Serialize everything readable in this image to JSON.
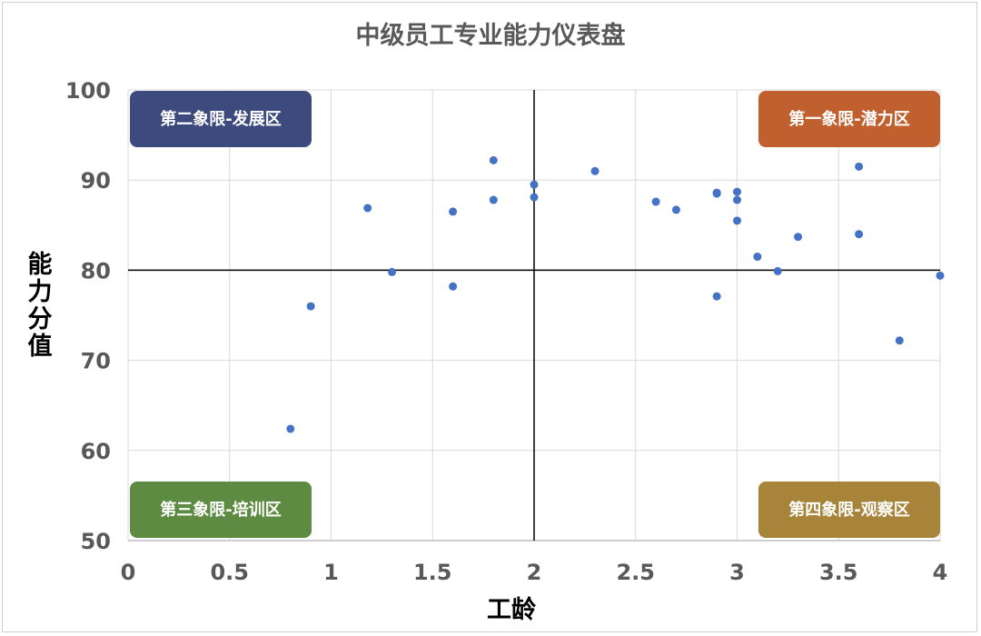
{
  "chart_data": {
    "type": "scatter",
    "title": "中级员工专业能力仪表盘",
    "xlabel": "工龄",
    "ylabel": "能力分值",
    "xlim": [
      0,
      4
    ],
    "ylim": [
      50,
      100
    ],
    "x_ticks": [
      "0",
      "0.5",
      "1",
      "1.5",
      "2",
      "2.5",
      "3",
      "3.5",
      "4"
    ],
    "y_ticks": [
      "50",
      "60",
      "70",
      "80",
      "90",
      "100"
    ],
    "grid": true,
    "reference_lines": {
      "x": 2,
      "y": 80
    },
    "point_color": "#4472c4",
    "points": [
      {
        "x": 0.8,
        "y": 62.4
      },
      {
        "x": 0.9,
        "y": 76.0
      },
      {
        "x": 1.18,
        "y": 86.9
      },
      {
        "x": 1.3,
        "y": 79.8
      },
      {
        "x": 1.6,
        "y": 86.5
      },
      {
        "x": 1.6,
        "y": 78.2
      },
      {
        "x": 1.8,
        "y": 92.2
      },
      {
        "x": 1.8,
        "y": 87.8
      },
      {
        "x": 2.0,
        "y": 89.5
      },
      {
        "x": 2.0,
        "y": 88.1
      },
      {
        "x": 2.3,
        "y": 91.0
      },
      {
        "x": 2.6,
        "y": 87.6
      },
      {
        "x": 2.7,
        "y": 86.7
      },
      {
        "x": 2.9,
        "y": 88.6
      },
      {
        "x": 2.9,
        "y": 88.5
      },
      {
        "x": 2.9,
        "y": 77.1
      },
      {
        "x": 3.0,
        "y": 88.7
      },
      {
        "x": 3.0,
        "y": 87.8
      },
      {
        "x": 3.0,
        "y": 85.5
      },
      {
        "x": 3.1,
        "y": 81.5
      },
      {
        "x": 3.2,
        "y": 79.9
      },
      {
        "x": 3.3,
        "y": 83.7
      },
      {
        "x": 3.6,
        "y": 91.5
      },
      {
        "x": 3.6,
        "y": 84.0
      },
      {
        "x": 3.8,
        "y": 72.2
      },
      {
        "x": 4.0,
        "y": 79.4
      }
    ],
    "quadrant_labels": [
      {
        "text": "第二象限-发展区",
        "position": "top-left",
        "color": "#3d4a7d"
      },
      {
        "text": "第一象限-潜力区",
        "position": "top-right",
        "color": "#c0602f"
      },
      {
        "text": "第三象限-培训区",
        "position": "bottom-left",
        "color": "#5e8b42"
      },
      {
        "text": "第四象限-观察区",
        "position": "bottom-right",
        "color": "#a8843a"
      }
    ]
  }
}
